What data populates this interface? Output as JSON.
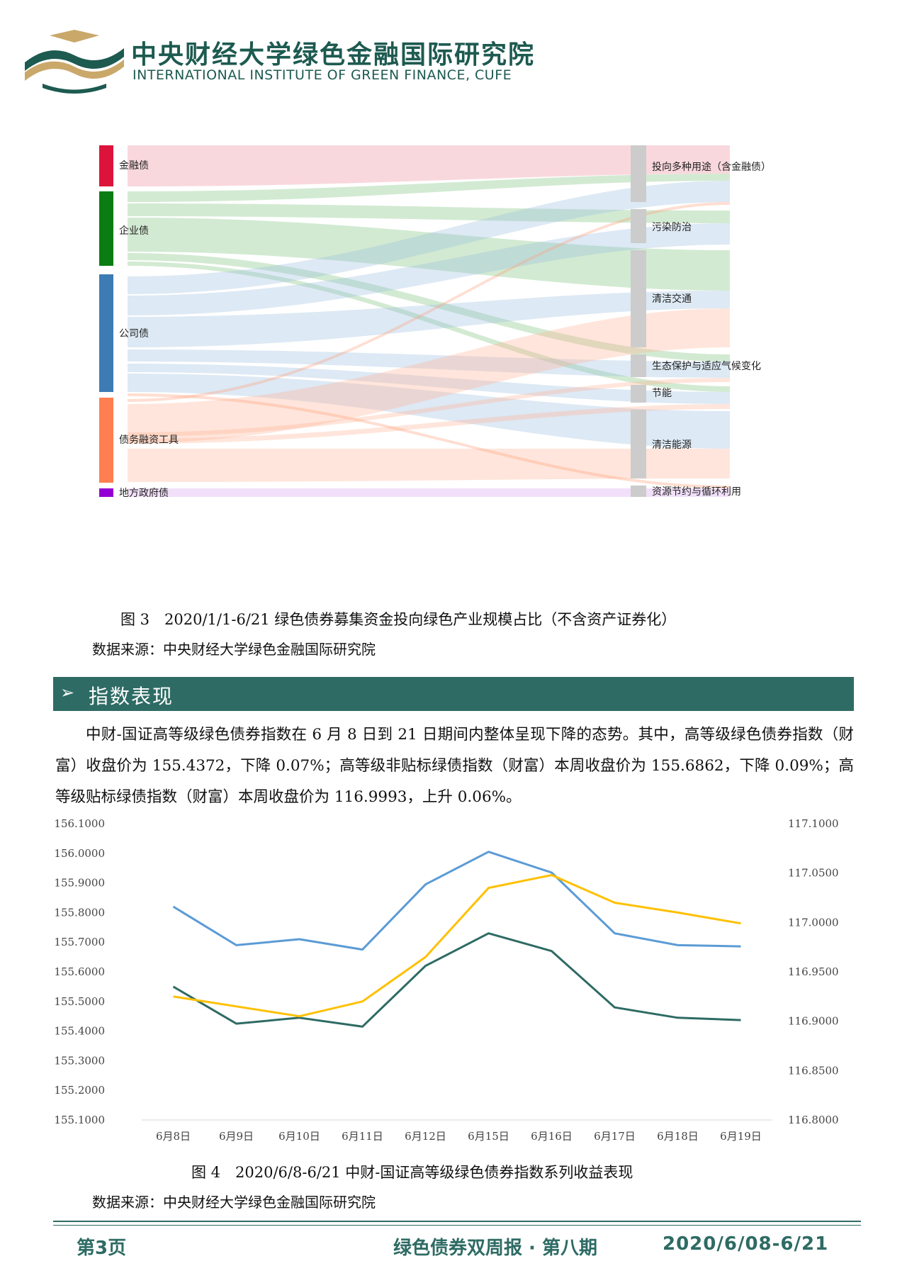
{
  "header": {
    "institute_cn": "中央财经大学绿色金融国际研究院",
    "institute_en": "INTERNATIONAL INSTITUTE OF GREEN FINANCE, CUFE",
    "logo_icon": "cufe-green-finance-logo-icon"
  },
  "figure3": {
    "sources": [
      "金融债",
      "企业债",
      "公司债",
      "债务融资工具",
      "地方政府债"
    ],
    "targets": [
      "投向多种用途（含金融债）",
      "污染防治",
      "清洁交通",
      "生态保护与适应气候变化",
      "节能",
      "清洁能源",
      "资源节约与循环利用"
    ],
    "caption": "图 3　2020/1/1-6/21 绿色债券募集资金投向绿色产业规模占比（不含资产证券化）",
    "source_note": "数据来源：中央财经大学绿色金融国际研究院",
    "colors": {
      "金融债": "#dc143c",
      "企业债": "#0a7d12",
      "公司债": "#3d7bb5",
      "债务融资工具": "#ff7f50",
      "地方政府债": "#9400d3",
      "target_node": "#cccccc"
    }
  },
  "section": {
    "icon": "arrow-bullet-icon",
    "arrow_glyph": "➢",
    "title": "指数表现"
  },
  "paragraph": "中财-国证高等级绿色债券指数在 6 月 8 日到 21 日期间内整体呈现下降的态势。其中，高等级绿色债券指数（财富）收盘价为 155.4372，下降 0.07%；高等级非贴标绿债指数（财富）本周收盘价为 155.6862，下降 0.09%；高等级贴标绿债指数（财富）本周收盘价为 116.9993，上升 0.06%。",
  "figure4": {
    "caption": "图 4　2020/6/8-6/21 中财-国证高等级绿色债券指数系列收益表现",
    "source_note": "数据来源：中央财经大学绿色金融国际研究院"
  },
  "chart_data": {
    "type": "line",
    "title": "",
    "xlabel": "",
    "ylabel": "",
    "categories": [
      "6月8日",
      "6月9日",
      "6月10日",
      "6月11日",
      "6月12日",
      "6月15日",
      "6月16日",
      "6月17日",
      "6月18日",
      "6月19日"
    ],
    "y_left_ticks": [
      "156.1000",
      "156.0000",
      "155.9000",
      "155.8000",
      "155.7000",
      "155.6000",
      "155.5000",
      "155.4000",
      "155.3000",
      "155.2000",
      "155.1000"
    ],
    "y_right_ticks": [
      "117.1000",
      "117.0500",
      "117.0000",
      "116.9500",
      "116.9000",
      "116.8500",
      "116.8000"
    ],
    "ylim_left": [
      155.1,
      156.1
    ],
    "ylim_right": [
      116.8,
      117.1
    ],
    "grid": false,
    "legend": "none",
    "series": [
      {
        "axis": "left",
        "color": "#5b9bd5",
        "values": [
          155.82,
          155.69,
          155.71,
          155.675,
          155.895,
          156.005,
          155.935,
          155.73,
          155.69,
          155.686
        ]
      },
      {
        "axis": "left",
        "color": "#2e6b64",
        "values": [
          155.55,
          155.425,
          155.445,
          155.415,
          155.62,
          155.73,
          155.67,
          155.48,
          155.445,
          155.437
        ]
      },
      {
        "axis": "right",
        "color": "#ffc000",
        "values": [
          116.925,
          116.915,
          116.905,
          116.92,
          116.965,
          117.035,
          117.048,
          117.02,
          117.01,
          116.999
        ]
      }
    ]
  },
  "footer": {
    "page": "第3页",
    "title": "绿色债券双周报 · 第八期",
    "date": "2020/6/08-6/21"
  }
}
